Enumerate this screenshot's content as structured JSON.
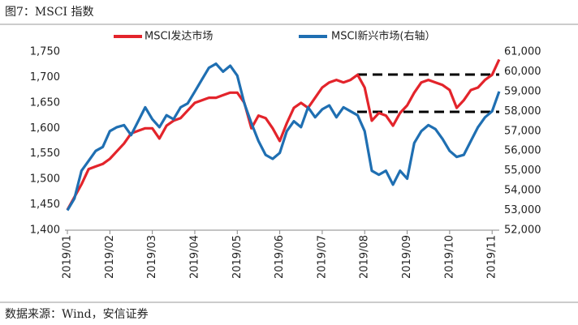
{
  "chart_data": {
    "type": "line",
    "title": "图7：MSCI 指数",
    "source": "数据来源：Wind，安信证券",
    "categories": [
      "2019/01",
      null,
      null,
      null,
      null,
      null,
      "2019/02",
      null,
      null,
      null,
      null,
      null,
      "2019/03",
      null,
      null,
      null,
      null,
      null,
      "2019/04",
      null,
      null,
      null,
      null,
      null,
      "2019/05",
      null,
      null,
      null,
      null,
      null,
      "2019/06",
      null,
      null,
      null,
      null,
      null,
      "2019/07",
      null,
      null,
      null,
      null,
      null,
      "2019/08",
      null,
      null,
      null,
      null,
      null,
      "2019/09",
      null,
      null,
      null,
      null,
      null,
      "2019/10",
      null,
      null,
      null,
      null,
      null,
      "2019/11",
      null
    ],
    "series": [
      {
        "name": "MSCI发达市场",
        "color": "#e3242b",
        "values": [
          1440,
          1465,
          1490,
          1520,
          1525,
          1530,
          1540,
          1555,
          1570,
          1590,
          1595,
          1600,
          1600,
          1580,
          1605,
          1615,
          1620,
          1635,
          1650,
          1655,
          1660,
          1660,
          1665,
          1670,
          1670,
          1650,
          1600,
          1625,
          1620,
          1600,
          1575,
          1610,
          1640,
          1650,
          1640,
          1660,
          1680,
          1690,
          1695,
          1690,
          1695,
          1705,
          1680,
          1615,
          1630,
          1625,
          1605,
          1630,
          1645,
          1670,
          1690,
          1695,
          1690,
          1685,
          1675,
          1640,
          1655,
          1675,
          1680,
          1695,
          1705,
          1735
        ]
      },
      {
        "name": "MSCI新兴市场(右轴）",
        "color": "#1f6fb2",
        "axis": "y2",
        "values": [
          53000,
          53600,
          55000,
          55500,
          56000,
          56200,
          57000,
          57200,
          57300,
          56800,
          57500,
          58200,
          57600,
          57200,
          57800,
          57600,
          58200,
          58400,
          59000,
          59600,
          60200,
          60400,
          60000,
          60300,
          59800,
          58400,
          57400,
          56500,
          55800,
          55600,
          55900,
          57000,
          57500,
          57200,
          58200,
          57700,
          58100,
          58300,
          57700,
          58200,
          58000,
          57800,
          57000,
          55000,
          54800,
          55000,
          54300,
          55000,
          54600,
          56400,
          57000,
          57300,
          57100,
          56600,
          56000,
          55700,
          55800,
          56500,
          57200,
          57700,
          58000,
          59000
        ]
      }
    ],
    "ylim": [
      1400,
      1750
    ],
    "yticks": [
      {
        "value": 1400,
        "label": "1,400"
      },
      {
        "value": 1450,
        "label": "1,450"
      },
      {
        "value": 1500,
        "label": "1,500"
      },
      {
        "value": 1550,
        "label": "1,550"
      },
      {
        "value": 1600,
        "label": "1,600"
      },
      {
        "value": 1650,
        "label": "1,650"
      },
      {
        "value": 1700,
        "label": "1,700"
      },
      {
        "value": 1750,
        "label": "1,750"
      }
    ],
    "y2lim": [
      52000,
      61000
    ],
    "y2ticks": [
      {
        "value": 52000,
        "label": "52,000"
      },
      {
        "value": 53000,
        "label": "53,000"
      },
      {
        "value": 54000,
        "label": "54,000"
      },
      {
        "value": 55000,
        "label": "55,000"
      },
      {
        "value": 56000,
        "label": "56,000"
      },
      {
        "value": 57000,
        "label": "57,000"
      },
      {
        "value": 58000,
        "label": "58,000"
      },
      {
        "value": 59000,
        "label": "59,000"
      },
      {
        "value": 60000,
        "label": "60,000"
      },
      {
        "value": 61000,
        "label": "61,000"
      }
    ]
  }
}
